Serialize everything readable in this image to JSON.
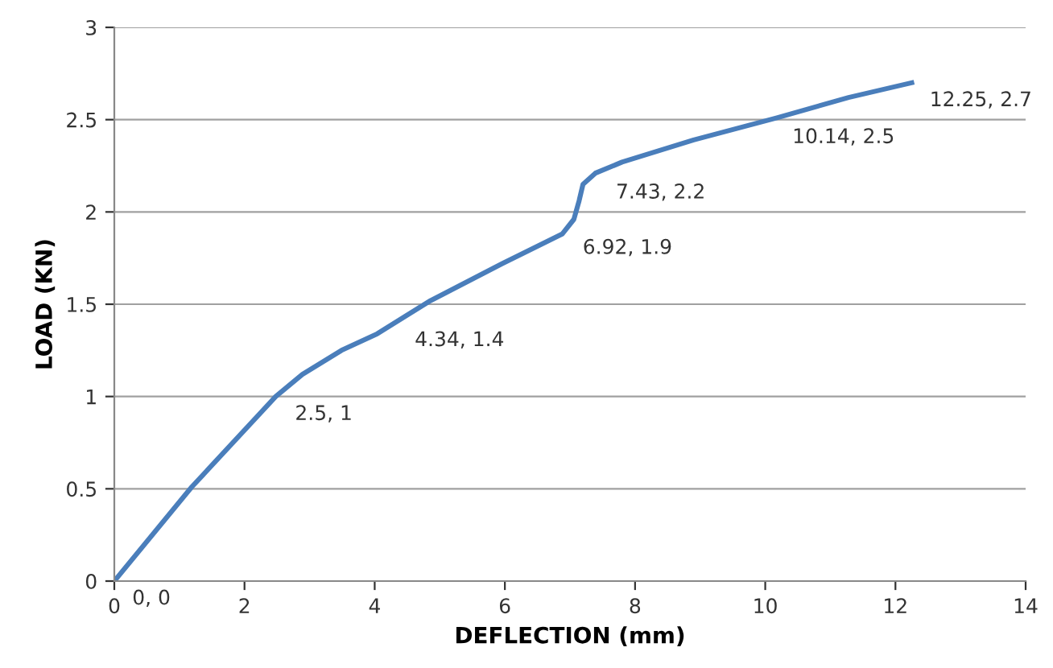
{
  "chart_data": {
    "type": "line",
    "xlabel": "DEFLECTION (mm)",
    "ylabel": "LOAD (KN)",
    "xlim": [
      0,
      14
    ],
    "xticks": [
      0,
      2,
      4,
      6,
      8,
      10,
      12,
      14
    ],
    "ylim": [
      0,
      3
    ],
    "yticks": [
      0,
      0.5,
      1,
      1.5,
      2,
      2.5,
      3
    ],
    "grid": "y",
    "marker": "none",
    "line_style": "solid",
    "series": [
      {
        "color": "#4a7ebb",
        "x": [
          0,
          1.19,
          2.48,
          2.89,
          3.49,
          4.04,
          4.86,
          5.96,
          6.88,
          7.06,
          7.14,
          7.2,
          7.39,
          7.8,
          8.9,
          10.18,
          11.28,
          12.25
        ],
        "values": [
          0,
          0.51,
          1.0,
          1.12,
          1.25,
          1.34,
          1.52,
          1.72,
          1.88,
          1.96,
          2.06,
          2.15,
          2.21,
          2.27,
          2.39,
          2.51,
          2.62,
          2.7
        ]
      }
    ],
    "annotations": [
      {
        "text": "0, 0",
        "x": 0,
        "y": 0
      },
      {
        "text": "2.5, 1",
        "x": 2.5,
        "y": 1
      },
      {
        "text": "4.34, 1.4",
        "x": 4.34,
        "y": 1.4
      },
      {
        "text": "6.92, 1.9",
        "x": 6.92,
        "y": 1.9
      },
      {
        "text": "7.43, 2.2",
        "x": 7.43,
        "y": 2.2
      },
      {
        "text": "10.14, 2.5",
        "x": 10.14,
        "y": 2.5
      },
      {
        "text": "12.25, 2.7",
        "x": 12.25,
        "y": 2.7
      }
    ]
  }
}
